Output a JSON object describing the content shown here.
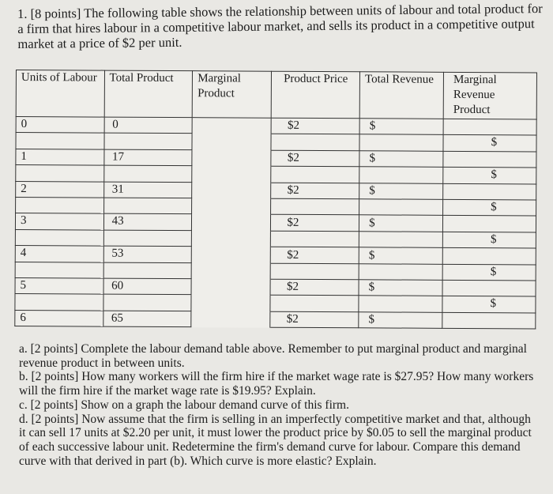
{
  "intro": "1. [8 points] The following table shows the relationship between units of labour and total product for a firm that hires labour in a competitive labour market, and sells its product in a competitive output market at a price of $2 per unit.",
  "table": {
    "headers": [
      "Units of Labour",
      "Total Product",
      "Marginal Product",
      "Product Price",
      "Total Revenue",
      "Marginal Revenue Product"
    ],
    "rows": [
      {
        "units": "0",
        "tp": "0",
        "price": "$2",
        "tr": "$"
      },
      {
        "units": "1",
        "tp": "17",
        "price": "$2",
        "tr": "$"
      },
      {
        "units": "2",
        "tp": "31",
        "price": "$2",
        "tr": "$"
      },
      {
        "units": "3",
        "tp": "43",
        "price": "$2",
        "tr": "$"
      },
      {
        "units": "4",
        "tp": "53",
        "price": "$2",
        "tr": "$"
      },
      {
        "units": "5",
        "tp": "60",
        "price": "$2",
        "tr": "$"
      },
      {
        "units": "6",
        "tp": "65",
        "price": "$2",
        "tr": "$"
      }
    ],
    "mrp_between": "$"
  },
  "questions": [
    "a. [2 points] Complete the labour demand table above. Remember to put marginal product and marginal revenue product in between units.",
    "b. [2 points] How many workers will the firm hire if the market wage rate is $27.95? How many workers will the firm hire if the market wage rate is $19.95? Explain.",
    "c. [2 points] Show on a graph the labour demand curve of this firm.",
    "d. [2 points] Now assume that the firm is selling in an imperfectly competitive market and that, although it can sell 17 units at $2.20 per unit, it must lower the product price by $0.05 to sell the marginal product of each successive labour unit. Redetermine the firm's demand curve for labour. Compare this demand curve with that derived in part (b). Which curve is more elastic? Explain."
  ]
}
